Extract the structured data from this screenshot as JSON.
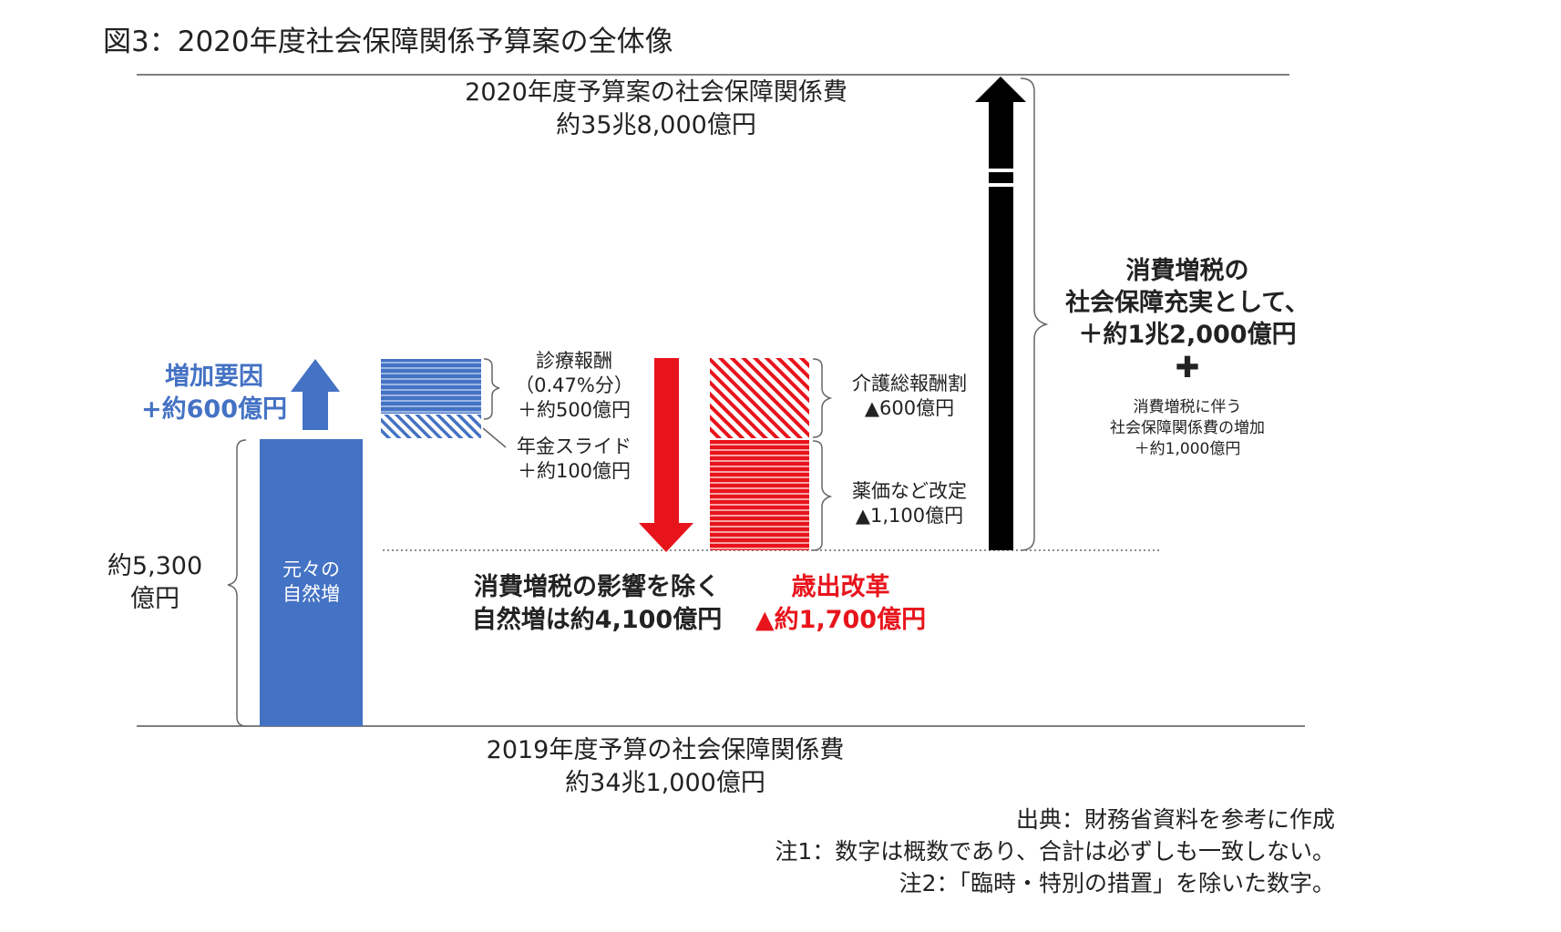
{
  "title": "図3：2020年度社会保障関係予算案の全体像",
  "top_label": {
    "line1": "2020年度予算案の社会保障関係費",
    "line2": "約35兆8,000億円"
  },
  "bottom_label": {
    "line1": "2019年度予算の社会保障関係費",
    "line2": "約34兆1,000億円"
  },
  "base": {
    "bar_label_line1": "元々の",
    "bar_label_line2": "自然増",
    "amount_line1": "約5,300",
    "amount_line2": "億円"
  },
  "increase": {
    "line1": "増加要因",
    "line2": "+約600億円"
  },
  "shinryo": {
    "line1": "診療報酬",
    "line2": "（0.47%分）",
    "line3": "＋約500億円"
  },
  "nenkin": {
    "line1": "年金スライド",
    "line2": "＋約100億円"
  },
  "kaigo": {
    "line1": "介護総報酬割",
    "line2": "▲600億円"
  },
  "yakka": {
    "line1": "薬価など改定",
    "line2": "▲1,100億円"
  },
  "natural_increase": {
    "line1": "消費増税の影響を除く",
    "line2": "自然増は約4,100億円"
  },
  "reform": {
    "line1": "歳出改革",
    "line2": "▲約1,700億円"
  },
  "tax": {
    "line1": "消費増税の",
    "line2": "社会保障充実として、",
    "line3": "＋約1兆2,000億円",
    "plus": "✚",
    "sub1": "消費増税に伴う",
    "sub2": "社会保障関係費の増加",
    "sub3": "＋約1,000億円"
  },
  "notes": {
    "source": "出典：財務省資料を参考に作成",
    "note1": "注1：数字は概数であり、合計は必ずしも一致しない。",
    "note2": "注2：「臨時・特別の措置」を除いた数字。"
  },
  "colors": {
    "blue": "#4472c4",
    "red": "#e8141c",
    "black": "#000000"
  }
}
